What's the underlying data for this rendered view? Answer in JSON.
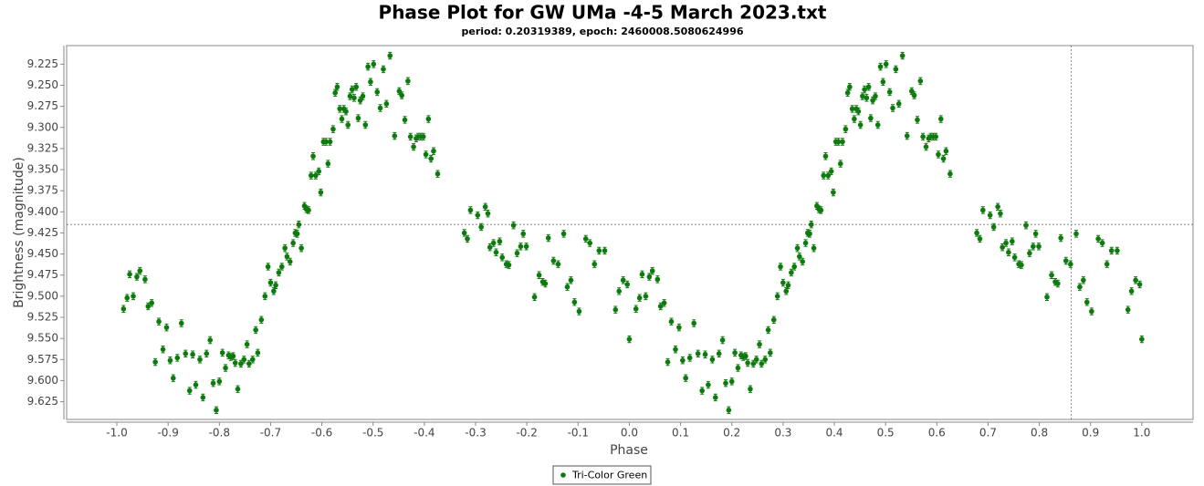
{
  "chart_data": {
    "type": "scatter",
    "title": "Phase Plot for GW UMa -4-5 March 2023.txt",
    "subtitle": "period: 0.20319389, epoch: 2460008.5080624996",
    "x_label": "Phase",
    "y_label": "Brightness (magnitude)",
    "xlim": [
      -1.098,
      1.1
    ],
    "ylim": [
      9.646,
      9.203
    ],
    "xticks": [
      {
        "value": -1,
        "label": "-1.0"
      },
      -0.9,
      -0.8,
      -0.7,
      -0.6,
      -0.5,
      -0.4,
      -0.3,
      -0.2,
      -0.1,
      {
        "value": 0,
        "label": "0.0"
      },
      0.1,
      0.2,
      0.3,
      0.4,
      0.5,
      0.6,
      0.7,
      0.8,
      0.9,
      {
        "value": 1,
        "label": "1.0"
      }
    ],
    "yticks": [
      9.225,
      {
        "value": 9.25,
        "label": "9.250"
      },
      9.275,
      {
        "value": 9.3,
        "label": "9.300"
      },
      9.325,
      {
        "value": 9.35,
        "label": "9.350"
      },
      9.375,
      {
        "value": 9.4,
        "label": "9.400"
      },
      9.425,
      {
        "value": 9.45,
        "label": "9.450"
      },
      9.475,
      {
        "value": 9.5,
        "label": "9.500"
      },
      9.525,
      {
        "value": 9.55,
        "label": "9.550"
      },
      9.575,
      {
        "value": 9.6,
        "label": "9.600"
      },
      9.625
    ],
    "crosshair": {
      "x": 0.862,
      "y": 9.415
    },
    "legend": "bottom",
    "series": [
      {
        "name": "Tri-Color Green",
        "color": "#0d7a0d",
        "error": 0.004,
        "x": [
          -0.987,
          -0.98,
          -0.975,
          -0.968,
          -0.961,
          -0.955,
          -0.945,
          -0.939,
          -0.932,
          -0.925,
          -0.918,
          -0.91,
          -0.903,
          -0.896,
          -0.89,
          -0.882,
          -0.874,
          -0.866,
          -0.858,
          -0.852,
          -0.846,
          -0.838,
          -0.832,
          -0.825,
          -0.818,
          -0.812,
          -0.806,
          -0.8,
          -0.794,
          -0.788,
          -0.782,
          -0.778,
          -0.773,
          -0.769,
          -0.764,
          -0.758,
          -0.752,
          -0.746,
          -0.742,
          -0.735,
          -0.729,
          -0.725,
          -0.718,
          -0.711,
          -0.705,
          -0.7,
          -0.694,
          -0.69,
          -0.684,
          -0.678,
          -0.672,
          -0.668,
          -0.662,
          -0.656,
          -0.652,
          -0.648,
          -0.645,
          -0.64,
          -0.634,
          -0.63,
          -0.626,
          -0.621,
          -0.617,
          -0.612,
          -0.606,
          -0.602,
          -0.597,
          -0.592,
          -0.588,
          -0.584,
          -0.578,
          -0.574,
          -0.57,
          -0.565,
          -0.561,
          -0.557,
          -0.553,
          -0.549,
          -0.545,
          -0.541,
          -0.537,
          -0.533,
          -0.529,
          -0.525,
          -0.52,
          -0.515,
          -0.51,
          -0.505,
          -0.499,
          -0.492,
          -0.486,
          -0.48,
          -0.474,
          -0.467,
          -0.458,
          -0.449,
          -0.444,
          -0.438,
          -0.432,
          -0.427,
          -0.421,
          -0.416,
          -0.412,
          -0.407,
          -0.402,
          -0.397,
          -0.392,
          -0.387,
          -0.382,
          -0.374,
          -0.322,
          -0.316,
          -0.31,
          -0.296,
          -0.289,
          -0.281,
          -0.276,
          -0.272,
          -0.265,
          -0.26,
          -0.253,
          -0.248,
          -0.24,
          -0.235,
          -0.226,
          -0.219,
          -0.212,
          -0.207,
          -0.201,
          -0.185,
          -0.176,
          -0.169,
          -0.164,
          -0.158,
          -0.148,
          -0.139,
          -0.128,
          -0.121,
          -0.114,
          -0.107,
          -0.098,
          -0.085,
          -0.077,
          -0.068,
          -0.059,
          -0.048,
          -0.027,
          -0.02,
          -0.012,
          -0.004,
          0.0,
          0.013,
          0.02,
          0.025,
          0.032,
          0.039,
          0.045,
          0.055,
          0.061,
          0.068,
          0.075,
          0.082,
          0.09,
          0.097,
          0.104,
          0.11,
          0.118,
          0.126,
          0.134,
          0.142,
          0.148,
          0.154,
          0.162,
          0.168,
          0.175,
          0.182,
          0.188,
          0.194,
          0.2,
          0.206,
          0.212,
          0.218,
          0.222,
          0.227,
          0.231,
          0.236,
          0.242,
          0.248,
          0.254,
          0.258,
          0.265,
          0.271,
          0.275,
          0.282,
          0.289,
          0.295,
          0.3,
          0.306,
          0.31,
          0.316,
          0.322,
          0.328,
          0.332,
          0.338,
          0.344,
          0.348,
          0.352,
          0.355,
          0.36,
          0.366,
          0.37,
          0.374,
          0.379,
          0.383,
          0.388,
          0.394,
          0.398,
          0.403,
          0.408,
          0.412,
          0.416,
          0.422,
          0.426,
          0.43,
          0.435,
          0.439,
          0.443,
          0.447,
          0.451,
          0.455,
          0.459,
          0.463,
          0.467,
          0.471,
          0.475,
          0.48,
          0.485,
          0.49,
          0.495,
          0.501,
          0.508,
          0.514,
          0.52,
          0.526,
          0.533,
          0.542,
          0.551,
          0.556,
          0.562,
          0.568,
          0.573,
          0.579,
          0.584,
          0.588,
          0.593,
          0.598,
          0.603,
          0.608,
          0.613,
          0.618,
          0.626,
          0.678,
          0.684,
          0.69,
          0.704,
          0.711,
          0.719,
          0.724,
          0.728,
          0.735,
          0.74,
          0.747,
          0.752,
          0.76,
          0.765,
          0.774,
          0.781,
          0.788,
          0.793,
          0.799,
          0.815,
          0.824,
          0.831,
          0.836,
          0.842,
          0.852,
          0.861,
          0.872,
          0.879,
          0.886,
          0.893,
          0.902,
          0.915,
          0.923,
          0.932,
          0.941,
          0.952,
          0.973,
          0.98,
          0.988,
          0.996,
          1.0
        ],
        "values": [
          9.515,
          9.502,
          9.474,
          9.5,
          9.477,
          9.47,
          9.48,
          9.512,
          9.508,
          9.578,
          9.53,
          9.563,
          9.537,
          9.576,
          9.597,
          9.573,
          9.532,
          9.568,
          9.612,
          9.569,
          9.605,
          9.575,
          9.62,
          9.568,
          9.552,
          9.603,
          9.635,
          9.601,
          9.567,
          9.585,
          9.57,
          9.572,
          9.571,
          9.579,
          9.61,
          9.58,
          9.575,
          9.557,
          9.58,
          9.575,
          9.54,
          9.567,
          9.528,
          9.5,
          9.465,
          9.484,
          9.494,
          9.487,
          9.472,
          9.465,
          9.443,
          9.453,
          9.459,
          9.437,
          9.425,
          9.426,
          9.415,
          9.443,
          9.393,
          9.397,
          9.398,
          9.357,
          9.334,
          9.357,
          9.352,
          9.377,
          9.317,
          9.317,
          9.343,
          9.317,
          9.302,
          9.259,
          9.252,
          9.278,
          9.29,
          9.278,
          9.281,
          9.297,
          9.263,
          9.255,
          9.265,
          9.252,
          9.289,
          9.268,
          9.263,
          9.297,
          9.228,
          9.246,
          9.225,
          9.258,
          9.277,
          9.231,
          9.272,
          9.215,
          9.31,
          9.257,
          9.262,
          9.291,
          9.245,
          9.311,
          9.323,
          9.313,
          9.311,
          9.311,
          9.311,
          9.332,
          9.29,
          9.337,
          9.328,
          9.355,
          9.425,
          9.432,
          9.398,
          9.404,
          9.418,
          9.394,
          9.402,
          9.442,
          9.437,
          9.448,
          9.435,
          9.454,
          9.462,
          9.463,
          9.416,
          9.449,
          9.441,
          9.426,
          9.441,
          9.501,
          9.475,
          9.483,
          9.485,
          9.431,
          9.458,
          9.462,
          9.426,
          9.489,
          9.481,
          9.507,
          9.518,
          9.432,
          9.437,
          9.462,
          9.446,
          9.446,
          9.516,
          9.494,
          9.481,
          9.486,
          9.551,
          9.515,
          9.502,
          9.474,
          9.5,
          9.477,
          9.47,
          9.48,
          9.512,
          9.508,
          9.578,
          9.53,
          9.563,
          9.537,
          9.576,
          9.597,
          9.573,
          9.532,
          9.568,
          9.612,
          9.569,
          9.605,
          9.575,
          9.62,
          9.568,
          9.552,
          9.603,
          9.635,
          9.601,
          9.567,
          9.585,
          9.57,
          9.572,
          9.571,
          9.579,
          9.61,
          9.58,
          9.575,
          9.557,
          9.58,
          9.575,
          9.54,
          9.567,
          9.528,
          9.5,
          9.465,
          9.484,
          9.494,
          9.487,
          9.472,
          9.465,
          9.443,
          9.453,
          9.459,
          9.437,
          9.425,
          9.426,
          9.415,
          9.443,
          9.393,
          9.397,
          9.398,
          9.357,
          9.334,
          9.357,
          9.352,
          9.377,
          9.317,
          9.317,
          9.343,
          9.317,
          9.302,
          9.259,
          9.252,
          9.278,
          9.29,
          9.278,
          9.281,
          9.297,
          9.263,
          9.255,
          9.265,
          9.252,
          9.289,
          9.268,
          9.263,
          9.297,
          9.228,
          9.246,
          9.225,
          9.258,
          9.277,
          9.231,
          9.272,
          9.215,
          9.31,
          9.257,
          9.262,
          9.291,
          9.245,
          9.311,
          9.323,
          9.313,
          9.311,
          9.311,
          9.311,
          9.332,
          9.29,
          9.337,
          9.328,
          9.355,
          9.425,
          9.432,
          9.398,
          9.404,
          9.418,
          9.394,
          9.402,
          9.442,
          9.437,
          9.448,
          9.435,
          9.454,
          9.462,
          9.463,
          9.416,
          9.449,
          9.441,
          9.426,
          9.441,
          9.501,
          9.475,
          9.483,
          9.485,
          9.431,
          9.458,
          9.462,
          9.426,
          9.489,
          9.481,
          9.507,
          9.518,
          9.432,
          9.437,
          9.462,
          9.446,
          9.446,
          9.516,
          9.494,
          9.481,
          9.486,
          9.551
        ]
      }
    ]
  }
}
